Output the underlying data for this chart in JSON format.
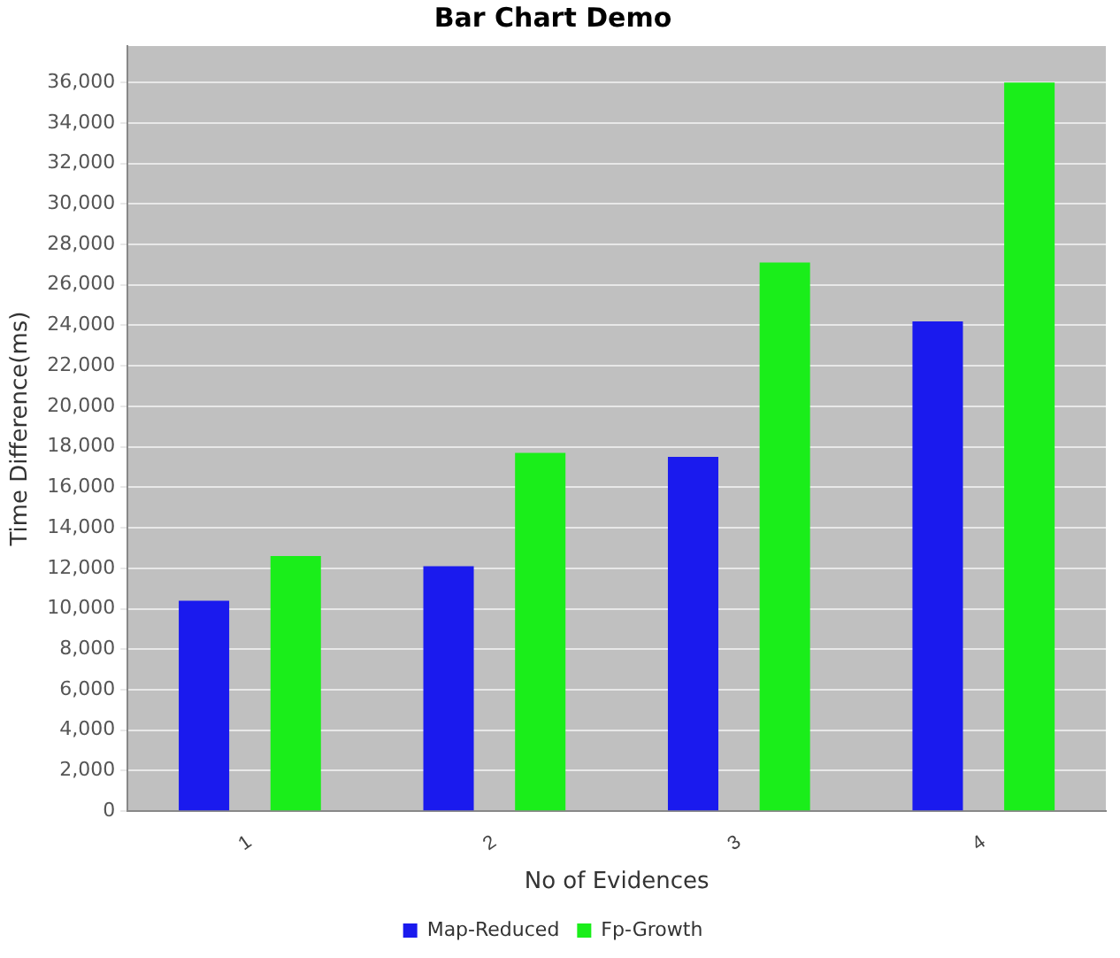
{
  "chart_data": {
    "type": "bar",
    "title": "Bar Chart Demo",
    "xlabel": "No of Evidences",
    "ylabel": "Time Difference(ms)",
    "categories": [
      "1",
      "2",
      "3",
      "4"
    ],
    "series": [
      {
        "name": "Map-Reduced",
        "color": "#1a1aee",
        "values": [
          10400,
          12100,
          17500,
          24200
        ]
      },
      {
        "name": "Fp-Growth",
        "color": "#1aee1a",
        "values": [
          12600,
          17700,
          27100,
          36000
        ]
      }
    ],
    "ylim": [
      0,
      37800
    ],
    "yticks": [
      0,
      {
        "value": 2000,
        "label": "2,000"
      },
      {
        "value": 4000,
        "label": "4,000"
      },
      {
        "value": 6000,
        "label": "6,000"
      },
      {
        "value": 8000,
        "label": "8,000"
      },
      {
        "value": 10000,
        "label": "10,000"
      },
      {
        "value": 12000,
        "label": "12,000"
      },
      {
        "value": 14000,
        "label": "14,000"
      },
      {
        "value": 16000,
        "label": "16,000"
      },
      {
        "value": 18000,
        "label": "18,000"
      },
      {
        "value": 20000,
        "label": "20,000"
      },
      {
        "value": 22000,
        "label": "22,000"
      },
      {
        "value": 24000,
        "label": "24,000"
      },
      {
        "value": 26000,
        "label": "26,000"
      },
      {
        "value": 28000,
        "label": "28,000"
      },
      {
        "value": 30000,
        "label": "30,000"
      },
      {
        "value": 32000,
        "label": "32,000"
      },
      {
        "value": 34000,
        "label": "34,000"
      },
      {
        "value": 36000,
        "label": "36,000"
      }
    ],
    "grid": "y",
    "legend": "bottom"
  }
}
